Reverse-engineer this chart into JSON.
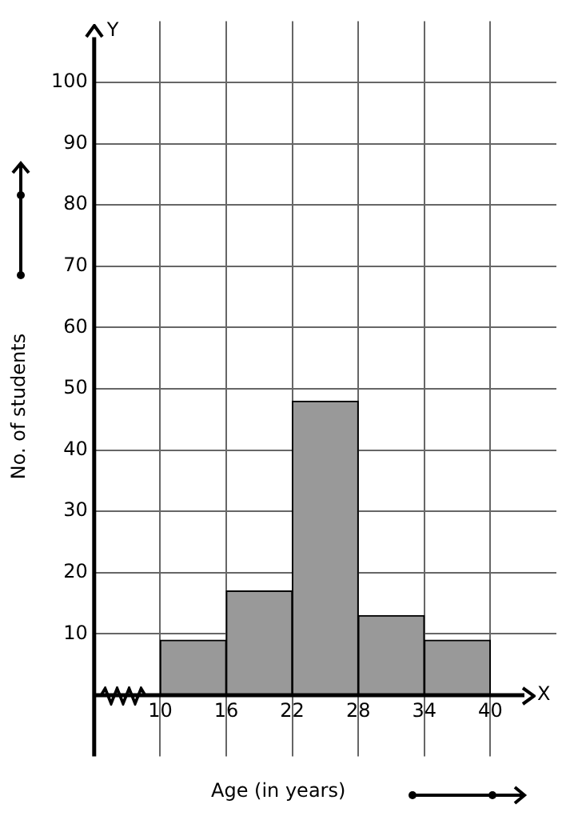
{
  "chart_data": {
    "type": "histogram",
    "xlabel": "Age (in years)",
    "ylabel": "No. of students",
    "bins": [
      10,
      16,
      22,
      28,
      34,
      40
    ],
    "values": [
      9,
      17,
      48,
      13,
      9
    ],
    "color": "#999999",
    "xlim": [
      4,
      46
    ],
    "xticks": [
      10,
      16,
      22,
      28,
      34,
      40
    ],
    "ylim": [
      -10,
      110
    ],
    "yticks": [
      10,
      20,
      30,
      40,
      50,
      60,
      70,
      80,
      90,
      100
    ],
    "grid": true,
    "legend": false,
    "annotations": [
      "X",
      "Y"
    ]
  }
}
